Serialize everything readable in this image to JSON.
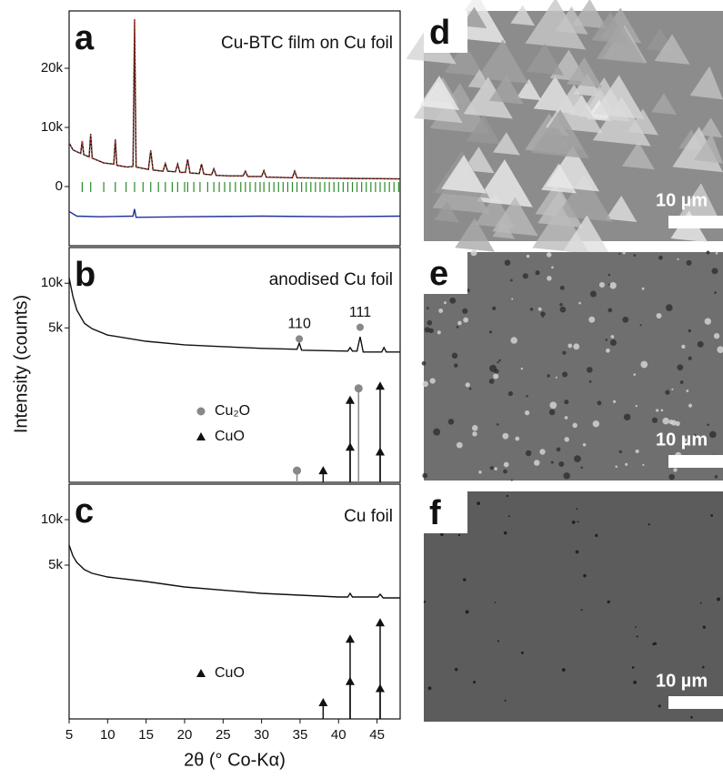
{
  "chart_data": [
    {
      "type": "line",
      "panel_label": "a",
      "title": "Cu-BTC film on Cu foil",
      "xlim": [
        5,
        48
      ],
      "ylim": [
        -10000,
        29700
      ],
      "yticks": [
        0,
        {
          "value": 10000,
          "label": "10k"
        },
        {
          "value": 20000,
          "label": "20k"
        }
      ],
      "series": [
        {
          "color": "#111111",
          "x": [
            5,
            5.5,
            6.5,
            6.7,
            6.9,
            7.6,
            7.8,
            8.0,
            9.5,
            10.8,
            11.0,
            11.2,
            12.5,
            13.3,
            13.5,
            13.7,
            15.3,
            15.6,
            15.9,
            17.2,
            17.5,
            17.8,
            18.8,
            19.1,
            19.4,
            20.1,
            20.4,
            20.7,
            21.9,
            22.2,
            22.5,
            23.5,
            23.8,
            24.1,
            26,
            27.6,
            27.9,
            28.2,
            30.0,
            30.3,
            30.6,
            34.0,
            34.3,
            34.6,
            40,
            48
          ],
          "values": [
            7400,
            6200,
            5600,
            7700,
            5400,
            5000,
            8900,
            4800,
            4000,
            3800,
            8000,
            3600,
            3300,
            3400,
            28300,
            3300,
            2900,
            6100,
            2800,
            2600,
            3900,
            2600,
            2500,
            3800,
            2400,
            2400,
            4600,
            2300,
            2200,
            3800,
            2100,
            2000,
            3000,
            1900,
            1800,
            1800,
            2600,
            1700,
            1700,
            2700,
            1600,
            1500,
            2600,
            1500,
            1400,
            1300
          ]
        },
        {
          "color": "#c0392b",
          "dash": true,
          "x": [
            5,
            5.5,
            6.5,
            6.7,
            6.9,
            7.6,
            7.8,
            8.0,
            9.5,
            10.8,
            11.0,
            11.2,
            12.5,
            13.3,
            13.5,
            13.7,
            15.3,
            15.6,
            15.9,
            17.2,
            17.5,
            17.8,
            18.8,
            19.1,
            19.4,
            20.1,
            20.4,
            20.7,
            21.9,
            22.2,
            22.5,
            23.5,
            23.8,
            24.1,
            26,
            27.6,
            27.9,
            28.2,
            30.0,
            30.3,
            30.6,
            34.0,
            34.3,
            34.6,
            40,
            48
          ],
          "values": [
            7400,
            6200,
            5600,
            7700,
            5400,
            5000,
            8900,
            4800,
            4000,
            3800,
            8000,
            3600,
            3300,
            3400,
            28300,
            3300,
            2900,
            6100,
            2800,
            2600,
            3900,
            2600,
            2500,
            3800,
            2400,
            2400,
            4600,
            2300,
            2200,
            3800,
            2100,
            2000,
            3000,
            1900,
            1800,
            1800,
            2600,
            1700,
            1700,
            2700,
            1600,
            1500,
            2600,
            1500,
            1400,
            1300
          ]
        },
        {
          "color": "#1f2f9a",
          "x": [
            5,
            6,
            9,
            13.3,
            13.5,
            13.7,
            20,
            30,
            40,
            48
          ],
          "values": [
            -4200,
            -5000,
            -5100,
            -5000,
            -3800,
            -5200,
            -5100,
            -5000,
            -5100,
            -5000
          ]
        },
        {
          "color": "#2a8a2a",
          "type": "reflection",
          "x": [
            6.7,
            7.8,
            9.5,
            11,
            12.4,
            13.5,
            14.6,
            15.6,
            16.6,
            17.5,
            18.4,
            19.1,
            20.0,
            20.4,
            21.2,
            22.0,
            23.0,
            23.8,
            24.5,
            25.2,
            25.9,
            26.6,
            27.3,
            27.9,
            28.5,
            29.2,
            29.8,
            30.3,
            31.0,
            31.6,
            32.2,
            32.8,
            33.4,
            34.0,
            34.6,
            35.2,
            35.8,
            36.4,
            37.0,
            37.6,
            38.2,
            38.8,
            39.4,
            40.0,
            40.6,
            41.2,
            41.8,
            42.4,
            43.0,
            43.6,
            44.2,
            44.8,
            45.4,
            46.0,
            46.6,
            47.2,
            47.8
          ]
        }
      ]
    },
    {
      "type": "line",
      "panel_label": "b",
      "title": "anodised Cu foil",
      "ylabel": "Intensity (counts)",
      "xlim": [
        5,
        48
      ],
      "ylim": [
        -12300,
        14000
      ],
      "y2lim": [
        0,
        100
      ],
      "yticks": [
        {
          "value": 5000,
          "label": "5k"
        },
        {
          "value": 10000,
          "label": "10k"
        }
      ],
      "series": [
        {
          "color": "#111111",
          "x": [
            5,
            5.5,
            6,
            7,
            8,
            10,
            15,
            20,
            25,
            30,
            34.6,
            34.9,
            35.2,
            41.2,
            41.5,
            41.8,
            42.4,
            42.8,
            43.2,
            45.6,
            45.9,
            46.2,
            48
          ],
          "values": [
            10600,
            8500,
            7000,
            5500,
            4900,
            4200,
            3500,
            3100,
            2900,
            2700,
            2600,
            3300,
            2500,
            2400,
            2800,
            2400,
            2400,
            4000,
            2300,
            2300,
            2800,
            2300,
            2300
          ]
        },
        {
          "name": "Cu₂O",
          "color": "#888888",
          "type": "stick",
          "marker": "circle",
          "axis": "y2",
          "x": [
            34.6,
            42.6
          ],
          "values": [
            5,
            40
          ]
        },
        {
          "name": "CuO",
          "color": "#111111",
          "type": "stick",
          "marker": "triangle",
          "axis": "y2",
          "x": [
            38.0,
            41.5,
            41.5,
            45.4,
            45.4
          ],
          "values": [
            5,
            35,
            15,
            41,
            13
          ]
        }
      ],
      "annotations": [
        {
          "text": "110",
          "x": 34.9,
          "y": 5400
        },
        {
          "text": "111",
          "x": 42.8,
          "y": 6700
        }
      ]
    },
    {
      "type": "line",
      "panel_label": "c",
      "title": "Cu foil",
      "xlabel": "2θ (° Co-Kα)",
      "xlim": [
        5,
        48
      ],
      "ylim": [
        -11900,
        13900
      ],
      "y2lim": [
        0,
        100
      ],
      "xticks": [
        5,
        10,
        15,
        20,
        25,
        30,
        35,
        40,
        45
      ],
      "yticks": [
        {
          "value": 5000,
          "label": "5k"
        },
        {
          "value": 10000,
          "label": "10k"
        }
      ],
      "series": [
        {
          "color": "#111111",
          "x": [
            5,
            5.5,
            6,
            7,
            8,
            10,
            15,
            20,
            30,
            40,
            41.2,
            41.5,
            41.8,
            45.1,
            45.4,
            45.8,
            48
          ],
          "values": [
            7200,
            6000,
            5300,
            4500,
            4100,
            3700,
            3200,
            2600,
            1900,
            1500,
            1500,
            1900,
            1500,
            1500,
            1800,
            1400,
            1400
          ]
        },
        {
          "name": "CuO",
          "color": "#111111",
          "type": "stick",
          "marker": "triangle",
          "axis": "y2",
          "x": [
            38.0,
            41.5,
            41.5,
            45.4,
            45.4
          ],
          "values": [
            7,
            34,
            16,
            41,
            13
          ]
        }
      ]
    }
  ],
  "images": [
    {
      "label": "d",
      "scale_bar": "10 µm"
    },
    {
      "label": "e",
      "scale_bar": "10 µm"
    },
    {
      "label": "f",
      "scale_bar": "10 µm"
    }
  ]
}
